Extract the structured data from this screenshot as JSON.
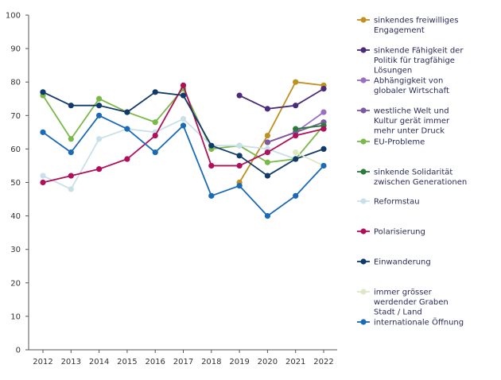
{
  "chart_data": {
    "type": "line",
    "x": [
      "2012",
      "2013",
      "2014",
      "2015",
      "2016",
      "2017",
      "2018",
      "2019",
      "2020",
      "2021",
      "2022"
    ],
    "ylim": [
      0,
      100
    ],
    "yticks": [
      0,
      10,
      20,
      30,
      40,
      50,
      60,
      70,
      80,
      90,
      100
    ],
    "grid": false,
    "legend_position": "right",
    "series": [
      {
        "name": "sinkendes freiwilliges Engagement",
        "name_lines": [
          "sinkendes freiwilliges",
          "Engagement"
        ],
        "color": "#c09020",
        "values": [
          null,
          null,
          null,
          null,
          null,
          null,
          null,
          50,
          64,
          80,
          79
        ]
      },
      {
        "name": "sinkende Fähigkeit der Politik für tragfähige Lösungen",
        "name_lines": [
          "sinkende Fähigkeit der",
          "Politik für tragfähige",
          "Lösungen"
        ],
        "color": "#4a2a7a",
        "values": [
          null,
          null,
          null,
          null,
          null,
          null,
          null,
          76,
          72,
          73,
          78
        ]
      },
      {
        "name": "Abhängigkeit von globaler Wirtschaft",
        "name_lines": [
          "Abhängigkeit von",
          "globaler Wirtschaft"
        ],
        "color": "#9a6ec0",
        "values": [
          null,
          null,
          null,
          null,
          null,
          null,
          null,
          null,
          62,
          65,
          71
        ]
      },
      {
        "name": "westliche Welt und Kultur gerät immer mehr unter Druck",
        "name_lines": [
          "westliche Welt und",
          "Kultur gerät immer",
          "mehr unter Druck"
        ],
        "color": "#7a5aa0",
        "values": [
          null,
          null,
          null,
          null,
          null,
          null,
          null,
          null,
          62,
          65,
          68
        ]
      },
      {
        "name": "EU-Probleme",
        "name_lines": [
          "EU-Probleme"
        ],
        "color": "#7ab848",
        "values": [
          76,
          63,
          75,
          71,
          68,
          78,
          60,
          61,
          56,
          57,
          67
        ]
      },
      {
        "name": "sinkende Solidarität zwischen Generationen",
        "name_lines": [
          "sinkende Solidarität",
          "zwischen Generationen"
        ],
        "color": "#2a7a3a",
        "values": [
          null,
          null,
          null,
          null,
          null,
          null,
          null,
          null,
          null,
          66,
          67
        ]
      },
      {
        "name": "Reformstau",
        "name_lines": [
          "Reformstau"
        ],
        "color": "#c8e0e8",
        "values": [
          52,
          48,
          63,
          66,
          65,
          69,
          61,
          61,
          60,
          57,
          60
        ]
      },
      {
        "name": "Polarisierung",
        "name_lines": [
          "Polarisierung"
        ],
        "color": "#b0105a",
        "values": [
          50,
          52,
          54,
          57,
          64,
          79,
          55,
          55,
          59,
          64,
          66
        ]
      },
      {
        "name": "Einwanderung",
        "name_lines": [
          "Einwanderung"
        ],
        "color": "#103a6a",
        "values": [
          77,
          73,
          73,
          71,
          77,
          76,
          61,
          58,
          52,
          57,
          60
        ]
      },
      {
        "name": "immer grösser werdender Graben Stadt / Land",
        "name_lines": [
          "immer grösser",
          "werdender Graben",
          "Stadt / Land"
        ],
        "color": "#dde8c4",
        "values": [
          null,
          null,
          null,
          null,
          null,
          null,
          null,
          null,
          null,
          59,
          55
        ]
      },
      {
        "name": "internationale Öffnung",
        "name_lines": [
          "internationale Öffnung"
        ],
        "color": "#1a6ab8",
        "values": [
          65,
          59,
          70,
          66,
          59,
          67,
          46,
          49,
          40,
          46,
          55
        ]
      }
    ]
  }
}
